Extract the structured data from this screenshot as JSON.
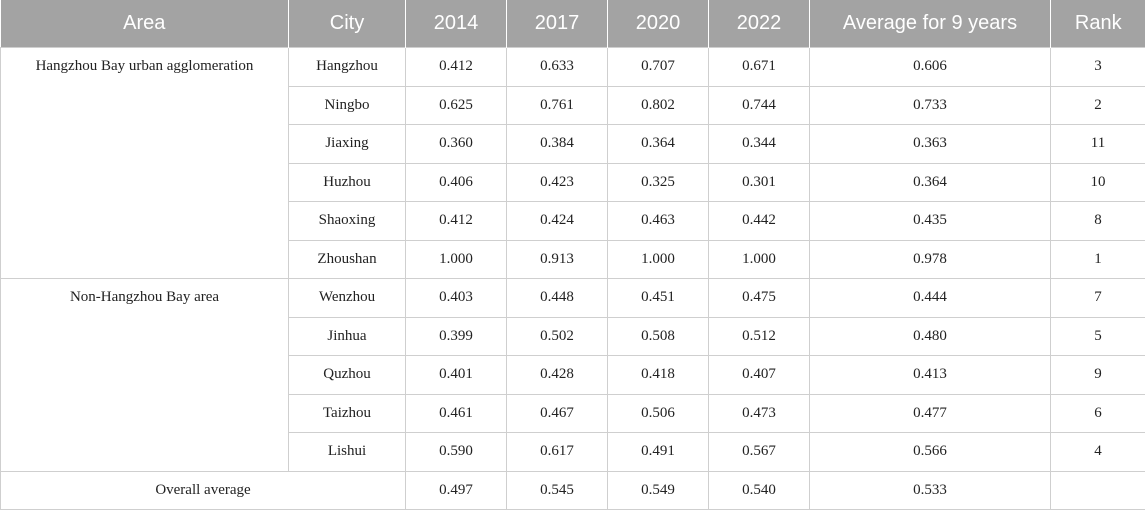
{
  "table": {
    "headers": [
      "Area",
      "City",
      "2014",
      "2017",
      "2020",
      "2022",
      "Average for 9 years",
      "Rank"
    ],
    "groups": [
      {
        "area": "Hangzhou Bay urban agglomeration",
        "rows": [
          [
            "Hangzhou",
            "0.412",
            "0.633",
            "0.707",
            "0.671",
            "0.606",
            "3"
          ],
          [
            "Ningbo",
            "0.625",
            "0.761",
            "0.802",
            "0.744",
            "0.733",
            "2"
          ],
          [
            "Jiaxing",
            "0.360",
            "0.384",
            "0.364",
            "0.344",
            "0.363",
            "11"
          ],
          [
            "Huzhou",
            "0.406",
            "0.423",
            "0.325",
            "0.301",
            "0.364",
            "10"
          ],
          [
            "Shaoxing",
            "0.412",
            "0.424",
            "0.463",
            "0.442",
            "0.435",
            "8"
          ],
          [
            "Zhoushan",
            "1.000",
            "0.913",
            "1.000",
            "1.000",
            "0.978",
            "1"
          ]
        ]
      },
      {
        "area": "Non-Hangzhou Bay area",
        "rows": [
          [
            "Wenzhou",
            "0.403",
            "0.448",
            "0.451",
            "0.475",
            "0.444",
            "7"
          ],
          [
            "Jinhua",
            "0.399",
            "0.502",
            "0.508",
            "0.512",
            "0.480",
            "5"
          ],
          [
            "Quzhou",
            "0.401",
            "0.428",
            "0.418",
            "0.407",
            "0.413",
            "9"
          ],
          [
            "Taizhou",
            "0.461",
            "0.467",
            "0.506",
            "0.473",
            "0.477",
            "6"
          ],
          [
            "Lishui",
            "0.590",
            "0.617",
            "0.491",
            "0.567",
            "0.566",
            "4"
          ]
        ]
      }
    ],
    "overall": {
      "label": "Overall average",
      "values": [
        "0.497",
        "0.545",
        "0.549",
        "0.540",
        "0.533",
        ""
      ]
    }
  },
  "colors": {
    "header_bg": "#a3a3a3",
    "header_text": "#ffffff",
    "grid": "#cfcfcf"
  }
}
